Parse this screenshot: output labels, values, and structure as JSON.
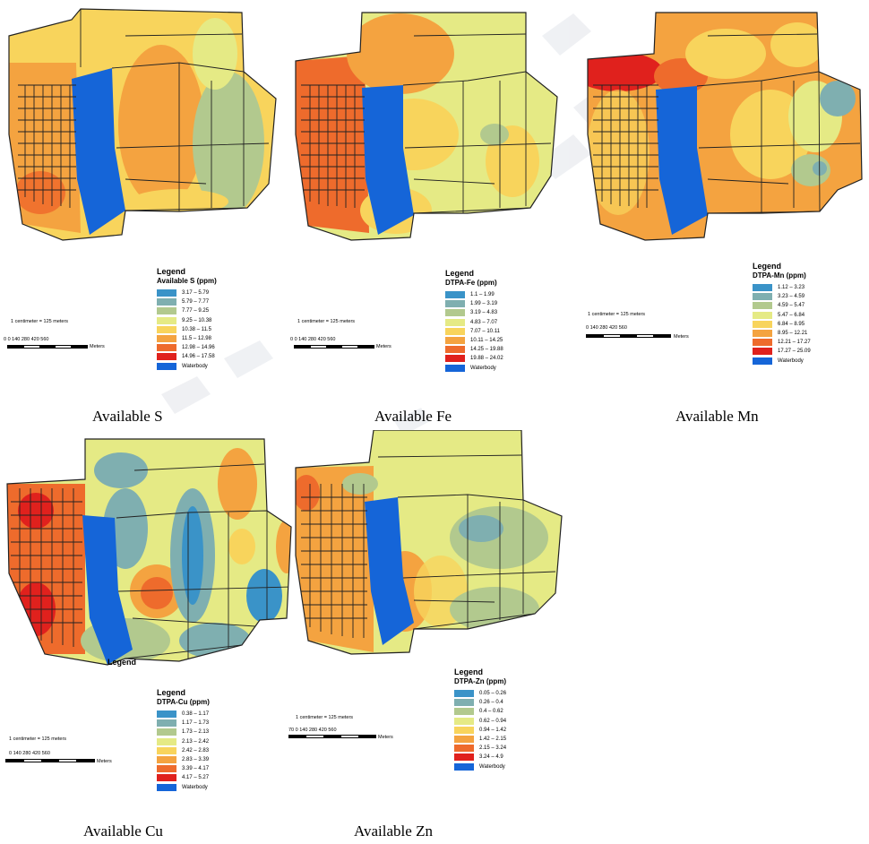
{
  "panels": [
    {
      "caption": "Available S",
      "legend_heading": "Legend",
      "legend_subtitle": "Available S (ppm)",
      "classes": [
        {
          "range": "3.17 – 5.79",
          "color": "#3a93c8"
        },
        {
          "range": "5.79 – 7.77",
          "color": "#7fafb0"
        },
        {
          "range": "7.77 – 9.25",
          "color": "#b2c98e"
        },
        {
          "range": "9.25 – 10.38",
          "color": "#e5ea85"
        },
        {
          "range": "10.38 – 11.5",
          "color": "#f8d45c"
        },
        {
          "range": "11.5 – 12.98",
          "color": "#f4a340"
        },
        {
          "range": "12.98 – 14.96",
          "color": "#ee6b2c"
        },
        {
          "range": "14.96 – 17.58",
          "color": "#e0211d"
        },
        {
          "range": "Waterbody",
          "color": "#1565d8"
        }
      ],
      "scale_note": "1 centimeter = 125 meters",
      "scale_ticks": "0   0    140   280   420   560",
      "scale_unit": "Meters"
    },
    {
      "caption": "Available Fe",
      "legend_heading": "Legend",
      "legend_subtitle": "DTPA-Fe (ppm)",
      "classes": [
        {
          "range": "1.1 – 1.99",
          "color": "#3a93c8"
        },
        {
          "range": "1.99 – 3.19",
          "color": "#7fafb0"
        },
        {
          "range": "3.19 – 4.83",
          "color": "#b2c98e"
        },
        {
          "range": "4.83 – 7.07",
          "color": "#e5ea85"
        },
        {
          "range": "7.07 – 10.11",
          "color": "#f8d45c"
        },
        {
          "range": "10.11 – 14.25",
          "color": "#f4a340"
        },
        {
          "range": "14.25 – 19.88",
          "color": "#ee6b2c"
        },
        {
          "range": "19.88 – 24.02",
          "color": "#e0211d"
        },
        {
          "range": "Waterbody",
          "color": "#1565d8"
        }
      ],
      "scale_note": "1 centimeter = 125 meters",
      "scale_ticks": "0   0    140   280   420   560",
      "scale_unit": "Meters"
    },
    {
      "caption": "Available Mn",
      "legend_heading": "Legend",
      "legend_subtitle": "DTPA-Mn (ppm)",
      "classes": [
        {
          "range": "1.12 – 3.23",
          "color": "#3a93c8"
        },
        {
          "range": "3.23 – 4.59",
          "color": "#7fafb0"
        },
        {
          "range": "4.59 – 5.47",
          "color": "#b2c98e"
        },
        {
          "range": "5.47 – 6.84",
          "color": "#e5ea85"
        },
        {
          "range": "6.84 – 8.95",
          "color": "#f8d45c"
        },
        {
          "range": "8.95 – 12.21",
          "color": "#f4a340"
        },
        {
          "range": "12.21 – 17.27",
          "color": "#ee6b2c"
        },
        {
          "range": "17.27 – 25.09",
          "color": "#e0211d"
        },
        {
          "range": "Waterbody",
          "color": "#1565d8"
        }
      ],
      "scale_note": "1 centimeter = 125 meters",
      "scale_ticks": "0    140   280   420   560",
      "scale_unit": "Meters"
    },
    {
      "caption": "Available Cu",
      "legend_heading": "Legend",
      "legend_subtitle": "DTPA-Cu (ppm)",
      "classes": [
        {
          "range": "0.38 – 1.17",
          "color": "#3a93c8"
        },
        {
          "range": "1.17 – 1.73",
          "color": "#7fafb0"
        },
        {
          "range": "1.73 – 2.13",
          "color": "#b2c98e"
        },
        {
          "range": "2.13 – 2.42",
          "color": "#e5ea85"
        },
        {
          "range": "2.42 – 2.83",
          "color": "#f8d45c"
        },
        {
          "range": "2.83 – 3.39",
          "color": "#f4a340"
        },
        {
          "range": "3.39 – 4.17",
          "color": "#ee6b2c"
        },
        {
          "range": "4.17 – 5.27",
          "color": "#e0211d"
        },
        {
          "range": "Waterbody",
          "color": "#1565d8"
        }
      ],
      "scale_note": "1 centimeter = 125 meters",
      "scale_ticks": "0    140   280   420   560",
      "scale_unit": "Meters"
    },
    {
      "caption": "Available Zn",
      "legend_heading": "Legend",
      "legend_subtitle": "DTPA-Zn (ppm)",
      "classes": [
        {
          "range": "0.05 – 0.26",
          "color": "#3a93c8"
        },
        {
          "range": "0.26 – 0.4",
          "color": "#7fafb0"
        },
        {
          "range": "0.4 – 0.62",
          "color": "#b2c98e"
        },
        {
          "range": "0.62 – 0.94",
          "color": "#e5ea85"
        },
        {
          "range": "0.94 – 1.42",
          "color": "#f8d45c"
        },
        {
          "range": "1.42 – 2.15",
          "color": "#f4a340"
        },
        {
          "range": "2.15 – 3.24",
          "color": "#ee6b2c"
        },
        {
          "range": "3.24 – 4.9",
          "color": "#e0211d"
        },
        {
          "range": "Waterbody",
          "color": "#1565d8"
        }
      ],
      "scale_note": "1 centimeter = 125 meters",
      "scale_ticks": "70  0    140   280   420   560",
      "scale_unit": "Meters"
    }
  ],
  "stray_legend_label": "Legend"
}
